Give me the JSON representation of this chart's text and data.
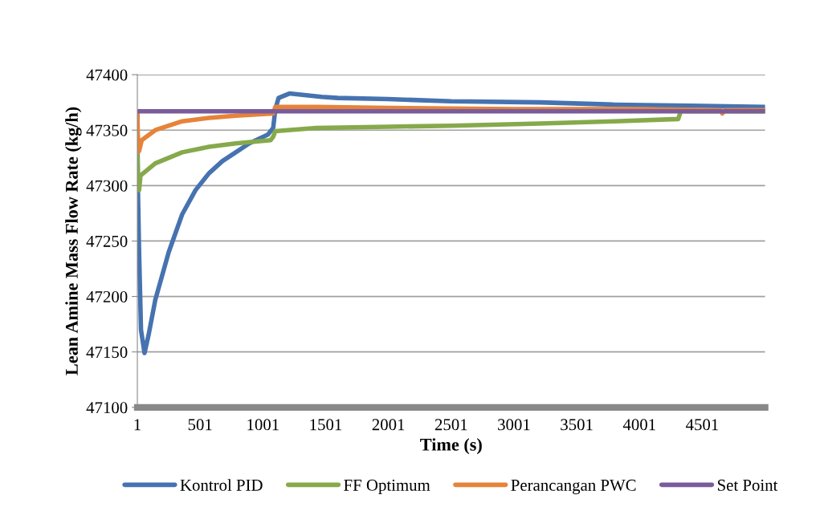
{
  "chart_data": {
    "type": "line",
    "xlabel": "Time (s)",
    "ylabel": "Lean Amine Mass Flow Rate (kg/h)",
    "xlim": [
      1,
      5001
    ],
    "xticks": [
      1,
      501,
      1001,
      1501,
      2001,
      2501,
      3001,
      3501,
      4001,
      4501
    ],
    "ylim": [
      47100,
      47400
    ],
    "yticks": [
      47100,
      47150,
      47200,
      47250,
      47300,
      47350,
      47400
    ],
    "grid": "y",
    "legend": "bottom",
    "marker": "none",
    "line_style": "solid",
    "series": [
      {
        "name": "Kontrol PID",
        "color": "#4673b0",
        "x": [
          1,
          5,
          15,
          30,
          58,
          90,
          144,
          251,
          358,
          465,
          571,
          678,
          785,
          892,
          1041,
          1083,
          1100,
          1126,
          1212,
          1469,
          1596,
          2000,
          2500,
          3206,
          3800,
          4400,
          5001
        ],
        "values": [
          47367,
          47300,
          47240,
          47170,
          47149,
          47165,
          47197,
          47240,
          47274,
          47296,
          47311,
          47322,
          47330,
          47338,
          47346,
          47352,
          47369,
          47379,
          47383,
          47380,
          47379,
          47378,
          47376,
          47375,
          47373,
          47372,
          47371
        ]
      },
      {
        "name": "FF Optimum",
        "color": "#86a94b",
        "x": [
          1,
          5,
          15,
          26,
          144,
          358,
          571,
          785,
          1062,
          1083,
          1100,
          1425,
          2000,
          2500,
          3206,
          3800,
          4309,
          4330,
          4700,
          5001
        ],
        "values": [
          47330,
          47310,
          47296,
          47309,
          47320,
          47330,
          47335,
          47338,
          47341,
          47344,
          47349,
          47352,
          47353,
          47354,
          47356,
          47358,
          47360,
          47367,
          47367,
          47367
        ]
      },
      {
        "name": "Perancangan PWC",
        "color": "#e6833a",
        "x": [
          1,
          5,
          15,
          36,
          144,
          358,
          571,
          785,
          1083,
          1100,
          1425,
          2000,
          3000,
          4000,
          4648,
          4660,
          4680,
          5001
        ],
        "values": [
          47367,
          47345,
          47331,
          47341,
          47350,
          47358,
          47361,
          47363,
          47365,
          47371,
          47371,
          47370,
          47369,
          47369,
          47368,
          47365,
          47368,
          47368
        ]
      },
      {
        "name": "Set Point",
        "color": "#7a5c9c",
        "x": [
          1,
          5001
        ],
        "values": [
          47367,
          47367
        ]
      }
    ]
  }
}
